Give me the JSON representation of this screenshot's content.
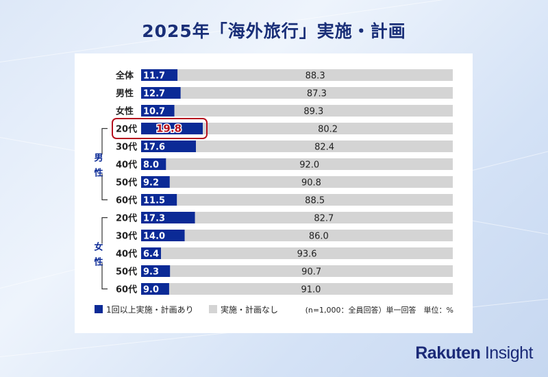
{
  "title": "2025年「海外旅行」実施・計画",
  "brand": {
    "bold": "Rakuten",
    "light": " Insight"
  },
  "colors": {
    "primary": "#0b2a96",
    "secondary": "#d4d4d4",
    "highlight": "#b5101e",
    "text": "#222222"
  },
  "group_labels": {
    "male": "男\n性",
    "female": "女\n性"
  },
  "legend": {
    "primary": "1回以上実施・計画あり",
    "secondary": "実施・計画なし"
  },
  "note": "(n=1,000：全員回答）単一回答　単位：%",
  "chart_data": {
    "type": "bar",
    "orientation": "horizontal",
    "stacked": true,
    "xlim": [
      0,
      100
    ],
    "categories": [
      "全体",
      "男性",
      "女性",
      "20代",
      "30代",
      "40代",
      "50代",
      "60代",
      "20代",
      "30代",
      "40代",
      "50代",
      "60代"
    ],
    "series": [
      {
        "name": "1回以上実施・計画あり",
        "values": [
          11.7,
          12.7,
          10.7,
          19.8,
          17.6,
          8.0,
          9.2,
          11.5,
          17.3,
          14.0,
          6.4,
          9.3,
          9.0
        ],
        "labels": [
          "11.7",
          "12.7",
          "10.7",
          "19.8",
          "17.6",
          "8.0",
          "9.2",
          "11.5",
          "17.3",
          "14.0",
          "6.4",
          "9.3",
          "9.0"
        ]
      },
      {
        "name": "実施・計画なし",
        "values": [
          88.3,
          87.3,
          89.3,
          80.2,
          82.4,
          92.0,
          90.8,
          88.5,
          82.7,
          86.0,
          93.6,
          90.7,
          91.0
        ],
        "labels": [
          "88.3",
          "87.3",
          "89.3",
          "80.2",
          "82.4",
          "92.0",
          "90.8",
          "88.5",
          "82.7",
          "86.0",
          "93.6",
          "90.7",
          "91.0"
        ]
      }
    ],
    "highlight_index": 3
  }
}
